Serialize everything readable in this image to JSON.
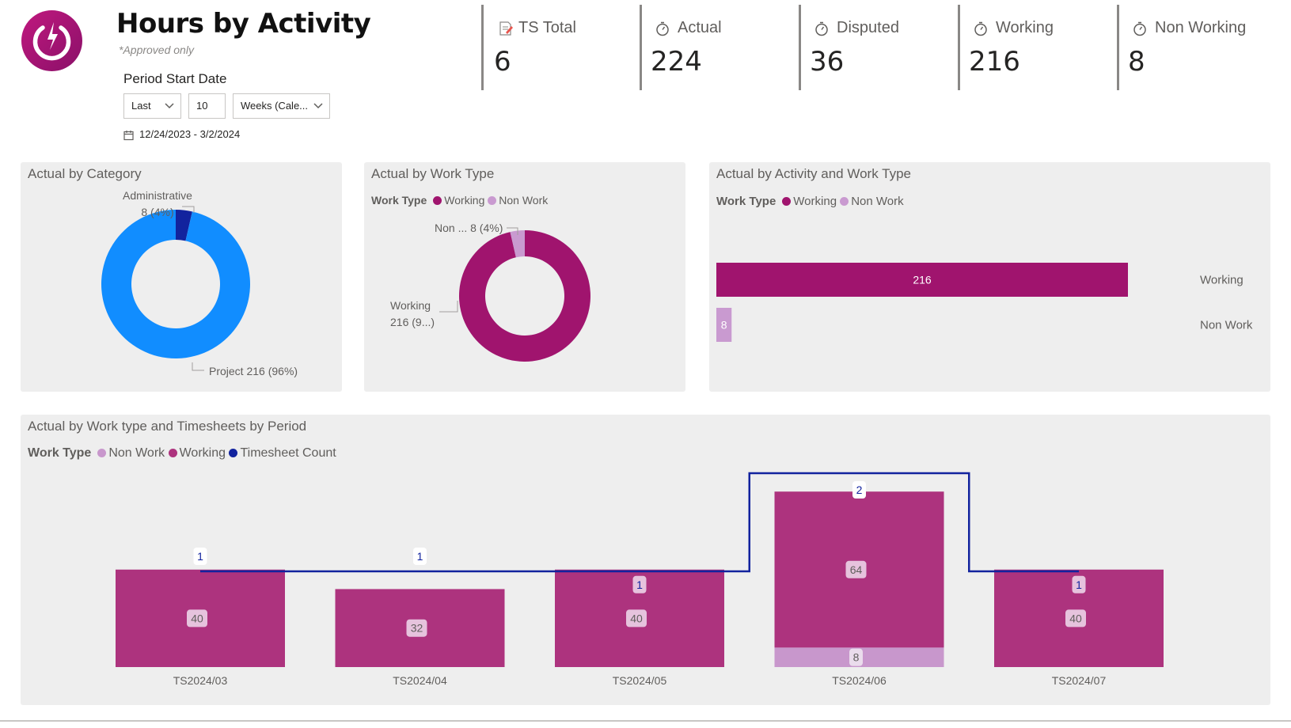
{
  "header": {
    "title": "Hours by Activity",
    "subtitle": "*Approved only",
    "period_label": "Period Start Date",
    "filter": {
      "mode": "Last",
      "count": "10",
      "unit": "Weeks (Cale..."
    },
    "date_range": "12/24/2023 - 3/2/2024"
  },
  "kpis": [
    {
      "label": "TS Total",
      "value": "6",
      "icon": "note-icon"
    },
    {
      "label": "Actual",
      "value": "224",
      "icon": "stopwatch-icon"
    },
    {
      "label": "Disputed",
      "value": "36",
      "icon": "stopwatch-icon"
    },
    {
      "label": "Working",
      "value": "216",
      "icon": "stopwatch-icon"
    },
    {
      "label": "Non Working",
      "value": "8",
      "icon": "stopwatch-icon"
    }
  ],
  "colors": {
    "working": "#a0146e",
    "non_work": "#c99ad0",
    "project": "#118dff",
    "administrative": "#12239e",
    "period_working": "#ad337e",
    "period_nonwork": "#c897cc",
    "timesheet_line": "#12239e"
  },
  "legend_title": "Work Type",
  "chart_data": [
    {
      "type": "pie",
      "title": "Actual by Category",
      "labels": [
        "Administrative",
        "Project"
      ],
      "values": [
        8,
        216
      ],
      "label_texts": [
        "Administrative",
        "8 (4%)",
        "Project 216 (96%)"
      ]
    },
    {
      "type": "pie",
      "title": "Actual by Work Type",
      "labels": [
        "Working",
        "Non Work"
      ],
      "values": [
        216,
        8
      ],
      "label_texts": [
        "Non ... 8 (4%)",
        "Working",
        "216 (9...)"
      ]
    },
    {
      "type": "bar",
      "orientation": "horizontal",
      "title": "Actual by Activity and Work Type",
      "categories": [
        "Working",
        "Non Work"
      ],
      "series": [
        {
          "name": "Working",
          "values": [
            216,
            0
          ]
        },
        {
          "name": "Non Work",
          "values": [
            0,
            8
          ]
        }
      ],
      "xlim": [
        0,
        216
      ],
      "legend": "top-left"
    },
    {
      "type": "bar",
      "stacked": true,
      "title": "Actual by Work type and Timesheets by Period",
      "categories": [
        "TS2024/03",
        "TS2024/04",
        "TS2024/05",
        "TS2024/06",
        "TS2024/07"
      ],
      "series": [
        {
          "name": "Non Work",
          "values": [
            0,
            0,
            0,
            8,
            0
          ]
        },
        {
          "name": "Working",
          "values": [
            40,
            32,
            40,
            64,
            40
          ]
        }
      ],
      "line": {
        "name": "Timesheet Count",
        "values": [
          1,
          1,
          1,
          2,
          1
        ]
      },
      "legend": "top-left"
    }
  ]
}
